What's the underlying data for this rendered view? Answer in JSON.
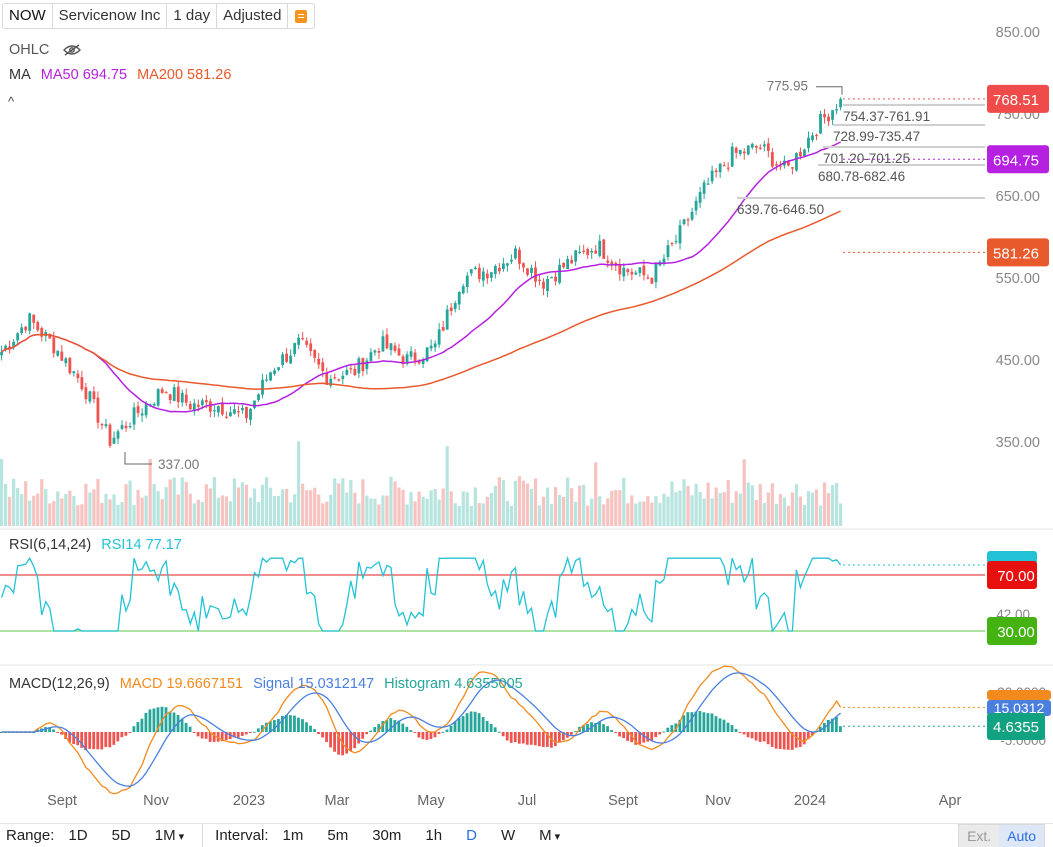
{
  "toolbar": {
    "symbol": "NOW",
    "company": "Servicenow Inc",
    "period": "1 day",
    "adjust": "Adjusted",
    "menu_icon": "list-icon"
  },
  "legend": {
    "ohlc": "OHLC",
    "ma_label": "MA",
    "ma50": "MA50 694.75",
    "ma200": "MA200 581.26",
    "rsi_label": "RSI(6,14,24)",
    "rsi14": "RSI14 77.17",
    "macd_label": "MACD(12,26,9)",
    "macd": "MACD 19.6667151",
    "signal": "Signal 15.0312147",
    "histogram": "Histogram 4.6355005"
  },
  "colors": {
    "up": "#26a69a",
    "down": "#ef5350",
    "ma50": "#b620e0",
    "ma200": "#e8592c",
    "rsi": "#22c3d6",
    "macd": "#f28a1e",
    "signal": "#4a7fe0",
    "hist_up": "#26a69a",
    "hist_down": "#ef5350"
  },
  "price_axis": [
    "850.00",
    "750.00",
    "650.00",
    "550.00",
    "450.00",
    "350.00"
  ],
  "rsi_axis": [
    "42.00"
  ],
  "macd_axis": [
    "20.0000",
    "-5.0000"
  ],
  "badges": {
    "last": "768.51",
    "ma50": "694.75",
    "ma200": "581.26",
    "rsi_top": "",
    "rsi70": "70.00",
    "rsi30": "30.00",
    "macd_top": "",
    "signal": "15.0312",
    "hist": "4.6355"
  },
  "annotations": {
    "high": "775.95",
    "low": "337.00",
    "ranges": [
      "754.37-761.91",
      "728.99-735.47",
      "701.20-701.25",
      "680.78-682.46",
      "639.76-646.50"
    ]
  },
  "x_axis": [
    "Sept",
    "Nov",
    "2023",
    "Mar",
    "May",
    "Jul",
    "Sept",
    "Nov",
    "2024",
    "Apr"
  ],
  "bottom": {
    "range_label": "Range:",
    "ranges": [
      "1D",
      "5D",
      "1M"
    ],
    "interval_label": "Interval:",
    "intervals": [
      "1m",
      "5m",
      "30m",
      "1h",
      "D",
      "W",
      "M"
    ],
    "active_interval": "D",
    "ext": "Ext.",
    "auto": "Auto"
  },
  "chart_data": {
    "type": "candlestick",
    "title": "",
    "price_range": [
      300,
      870
    ],
    "close_series": [
      {
        "x": "Jul 2022",
        "y": 460
      },
      {
        "x": "Aug 2022",
        "y": 500
      },
      {
        "x": "Aug 2022",
        "y": 465
      },
      {
        "x": "Sep 2022",
        "y": 420
      },
      {
        "x": "Oct 2022",
        "y": 352
      },
      {
        "x": "Oct 2022",
        "y": 385
      },
      {
        "x": "Nov 2022",
        "y": 415
      },
      {
        "x": "Dec 2022",
        "y": 395
      },
      {
        "x": "Dec 2022",
        "y": 395
      },
      {
        "x": "Jan 2023",
        "y": 380
      },
      {
        "x": "Jan 2023",
        "y": 440
      },
      {
        "x": "Feb 2023",
        "y": 470
      },
      {
        "x": "Mar 2023",
        "y": 430
      },
      {
        "x": "Mar 2023",
        "y": 435
      },
      {
        "x": "Apr 2023",
        "y": 470
      },
      {
        "x": "Apr 2023",
        "y": 450
      },
      {
        "x": "May 2023",
        "y": 465
      },
      {
        "x": "May 2023",
        "y": 550
      },
      {
        "x": "Jun 2023",
        "y": 560
      },
      {
        "x": "Jul 2023",
        "y": 580
      },
      {
        "x": "Jul 2023",
        "y": 545
      },
      {
        "x": "Aug 2023",
        "y": 570
      },
      {
        "x": "Sep 2023",
        "y": 590
      },
      {
        "x": "Sep 2023",
        "y": 560
      },
      {
        "x": "Oct 2023",
        "y": 550
      },
      {
        "x": "Nov 2023",
        "y": 600
      },
      {
        "x": "Nov 2023",
        "y": 660
      },
      {
        "x": "Dec 2023",
        "y": 700
      },
      {
        "x": "Dec 2023",
        "y": 710
      },
      {
        "x": "Jan 2024",
        "y": 680
      },
      {
        "x": "Jan 2024",
        "y": 730
      },
      {
        "x": "Jan 2024",
        "y": 768.51
      }
    ],
    "ma50_last": 694.75,
    "ma200_last": 581.26,
    "high": 775.95,
    "low": 337.0,
    "rsi_levels": [
      70,
      30
    ],
    "rsi14_last": 77.17,
    "macd_last": 19.6667151,
    "signal_last": 15.0312147,
    "histogram_last": 4.6355005
  }
}
